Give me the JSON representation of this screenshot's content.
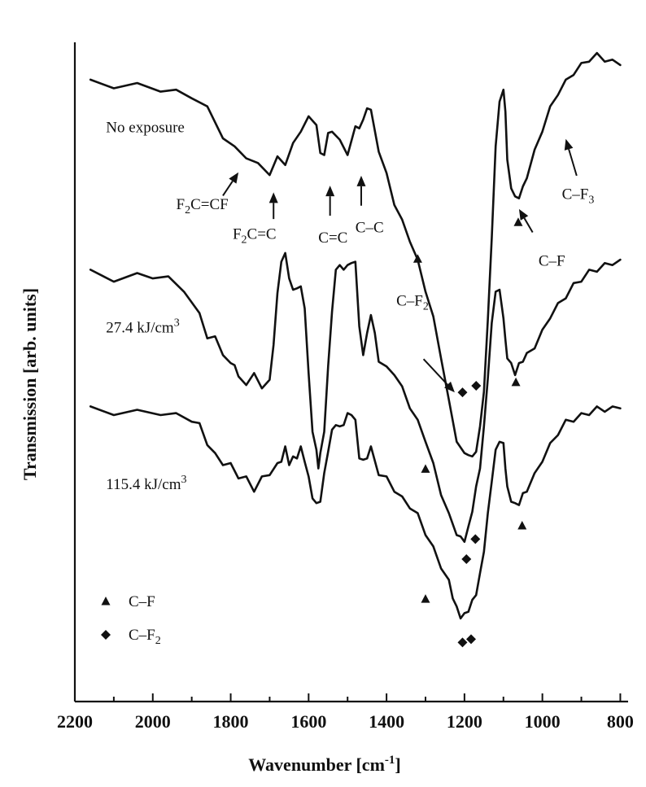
{
  "chart_data": {
    "type": "line",
    "xlabel": "Wavenumber [cm",
    "xlabel_sup": "-1",
    "xlabel_end": "]",
    "ylabel": "Transmission [arb. units]",
    "xlim": [
      2200,
      780
    ],
    "x_reversed": true,
    "y_ticks": false,
    "x_ticks": [
      2200,
      2000,
      1800,
      1600,
      1400,
      1200,
      1000,
      800
    ],
    "grid": false,
    "series": [
      {
        "name": "No exposure",
        "x": [
          2160,
          2100,
          2040,
          1980,
          1940,
          1900,
          1860,
          1820,
          1790,
          1760,
          1730,
          1700,
          1680,
          1660,
          1640,
          1620,
          1600,
          1580,
          1570,
          1560,
          1550,
          1540,
          1520,
          1500,
          1480,
          1470,
          1460,
          1450,
          1440,
          1420,
          1400,
          1380,
          1360,
          1340,
          1320,
          1300,
          1280,
          1260,
          1240,
          1220,
          1200,
          1190,
          1180,
          1170,
          1160,
          1150,
          1140,
          1130,
          1120,
          1110,
          1100,
          1095,
          1090,
          1080,
          1070,
          1060,
          1050,
          1040,
          1020,
          1000,
          980,
          960,
          940,
          920,
          900,
          880,
          860,
          840,
          820,
          800
        ],
        "y": [
          8.7,
          8.65,
          8.65,
          8.6,
          8.55,
          8.5,
          8.3,
          7.9,
          7.7,
          7.6,
          7.45,
          7.35,
          7.55,
          7.5,
          7.75,
          8.0,
          8.15,
          8.1,
          7.6,
          7.65,
          7.9,
          8.0,
          7.8,
          7.65,
          8.0,
          8.05,
          8.1,
          8.35,
          8.25,
          7.7,
          7.3,
          6.9,
          6.6,
          6.35,
          6.0,
          5.6,
          5.15,
          4.6,
          3.9,
          3.35,
          3.1,
          3.15,
          3.05,
          3.2,
          3.5,
          4.1,
          5.1,
          6.4,
          7.7,
          8.45,
          8.55,
          8.3,
          7.5,
          7.15,
          6.95,
          7.0,
          7.1,
          7.3,
          7.65,
          8.0,
          8.3,
          8.55,
          8.7,
          8.85,
          8.95,
          9.05,
          9.1,
          9.05,
          9.0,
          9.0
        ]
      },
      {
        "name": "27.4 kJ/cm³",
        "x": [
          2160,
          2100,
          2040,
          2000,
          1960,
          1920,
          1880,
          1860,
          1840,
          1820,
          1800,
          1790,
          1780,
          1760,
          1740,
          1720,
          1700,
          1690,
          1680,
          1670,
          1660,
          1650,
          1640,
          1630,
          1620,
          1610,
          1600,
          1590,
          1580,
          1575,
          1570,
          1560,
          1550,
          1540,
          1530,
          1520,
          1510,
          1500,
          1490,
          1480,
          1470,
          1460,
          1450,
          1440,
          1430,
          1420,
          1400,
          1380,
          1360,
          1340,
          1320,
          1300,
          1280,
          1260,
          1240,
          1220,
          1210,
          1200,
          1190,
          1180,
          1170,
          1160,
          1150,
          1140,
          1130,
          1120,
          1110,
          1100,
          1095,
          1090,
          1080,
          1070,
          1060,
          1050,
          1040,
          1020,
          1000,
          980,
          960,
          940,
          920,
          900,
          880,
          860,
          840,
          820,
          800
        ],
        "y": [
          5.85,
          5.75,
          5.8,
          5.8,
          5.75,
          5.6,
          5.2,
          4.9,
          4.85,
          4.65,
          4.45,
          4.5,
          4.25,
          4.2,
          4.3,
          4.15,
          4.2,
          4.8,
          5.5,
          6.05,
          6.1,
          5.8,
          5.55,
          5.65,
          5.6,
          5.35,
          4.3,
          3.5,
          3.15,
          2.95,
          3.1,
          3.5,
          4.4,
          5.3,
          5.85,
          6.0,
          5.85,
          6.0,
          5.95,
          6.05,
          5.0,
          4.65,
          4.9,
          5.25,
          4.9,
          4.55,
          4.4,
          4.35,
          4.1,
          3.85,
          3.6,
          3.35,
          2.95,
          2.55,
          2.2,
          1.95,
          1.85,
          1.85,
          2.0,
          2.3,
          2.6,
          2.95,
          3.5,
          4.3,
          5.05,
          5.6,
          5.55,
          5.2,
          4.8,
          4.6,
          4.45,
          4.35,
          4.45,
          4.55,
          4.6,
          4.75,
          4.95,
          5.2,
          5.35,
          5.5,
          5.65,
          5.75,
          5.85,
          5.9,
          5.95,
          6.0,
          6.0
        ]
      },
      {
        "name": "115.4 kJ/cm³",
        "x": [
          2160,
          2100,
          2040,
          1980,
          1940,
          1900,
          1880,
          1860,
          1840,
          1820,
          1800,
          1780,
          1760,
          1740,
          1720,
          1700,
          1680,
          1670,
          1660,
          1650,
          1640,
          1630,
          1620,
          1610,
          1600,
          1590,
          1580,
          1570,
          1560,
          1550,
          1540,
          1530,
          1520,
          1510,
          1500,
          1490,
          1480,
          1470,
          1460,
          1450,
          1440,
          1420,
          1400,
          1380,
          1360,
          1340,
          1320,
          1300,
          1280,
          1260,
          1240,
          1230,
          1220,
          1210,
          1200,
          1190,
          1180,
          1170,
          1160,
          1150,
          1140,
          1130,
          1120,
          1110,
          1100,
          1095,
          1090,
          1080,
          1070,
          1060,
          1050,
          1040,
          1020,
          1000,
          980,
          960,
          940,
          920,
          900,
          880,
          860,
          840,
          820,
          800
        ],
        "y": [
          3.8,
          3.75,
          3.75,
          3.75,
          3.7,
          3.65,
          3.55,
          3.3,
          3.1,
          3.0,
          2.95,
          2.8,
          2.75,
          2.6,
          2.75,
          2.85,
          2.95,
          3.05,
          3.2,
          3.0,
          3.05,
          3.1,
          3.2,
          3.05,
          2.75,
          2.5,
          2.35,
          2.45,
          2.8,
          3.2,
          3.45,
          3.6,
          3.5,
          3.6,
          3.7,
          3.75,
          3.6,
          3.1,
          3.0,
          3.1,
          3.2,
          2.85,
          2.75,
          2.6,
          2.45,
          2.35,
          2.2,
          1.95,
          1.7,
          1.45,
          1.2,
          1.0,
          0.8,
          0.7,
          0.7,
          0.8,
          0.9,
          1.05,
          1.3,
          1.7,
          2.2,
          2.75,
          3.15,
          3.35,
          3.25,
          2.95,
          2.6,
          2.45,
          2.35,
          2.4,
          2.5,
          2.6,
          2.8,
          3.05,
          3.25,
          3.45,
          3.6,
          3.65,
          3.7,
          3.75,
          3.8,
          3.8,
          3.8,
          3.85
        ]
      }
    ],
    "series_labels": [
      {
        "text": "No exposure",
        "x": 2120,
        "y": 7.95
      },
      {
        "text": "27.4 kJ/cm",
        "sup": "3",
        "x": 2120,
        "y": 4.95
      },
      {
        "text": "115.4 kJ/cm",
        "sup": "3",
        "x": 2120,
        "y": 2.6
      }
    ],
    "annotations": [
      {
        "text": "F",
        "sub": "2",
        "tail": "C=CF",
        "text_x": 1940,
        "text_y": 6.8,
        "arrow_from": [
          1820,
          7.0
        ],
        "arrow_to": [
          1780,
          7.35
        ]
      },
      {
        "text": "F",
        "sub": "2",
        "tail": "C=C",
        "text_x": 1795,
        "text_y": 6.35,
        "arrow_from": [
          1690,
          6.65
        ],
        "arrow_to": [
          1690,
          7.05
        ]
      },
      {
        "text": "C=C",
        "tail": "",
        "text_x": 1575,
        "text_y": 6.3,
        "arrow_from": [
          1545,
          6.7
        ],
        "arrow_to": [
          1545,
          7.15
        ]
      },
      {
        "text": "C–C",
        "tail": "",
        "text_x": 1480,
        "text_y": 6.45,
        "arrow_from": [
          1465,
          6.85
        ],
        "arrow_to": [
          1465,
          7.3
        ]
      },
      {
        "text": "C–F",
        "tail": "",
        "text_x": 1010,
        "text_y": 5.95,
        "arrow_from": [
          1025,
          6.45
        ],
        "arrow_to": [
          1060,
          6.8
        ]
      },
      {
        "text": "C–F",
        "sub": "3",
        "tail": "",
        "text_x": 950,
        "text_y": 6.95,
        "arrow_from": [
          912,
          7.3
        ],
        "arrow_to": [
          940,
          7.85
        ]
      },
      {
        "text": "C–F",
        "sub": "2",
        "tail": "",
        "text_x": 1375,
        "text_y": 5.35,
        "arrow_from": [
          1305,
          4.55
        ],
        "arrow_to": [
          1225,
          4.05
        ]
      }
    ],
    "markers": [
      {
        "shape": "triangle",
        "x": 1320,
        "y": 6.05
      },
      {
        "shape": "triangle",
        "x": 1062,
        "y": 6.6
      },
      {
        "shape": "diamond",
        "x": 1205,
        "y": 4.05
      },
      {
        "shape": "diamond",
        "x": 1170,
        "y": 4.15
      },
      {
        "shape": "triangle",
        "x": 1068,
        "y": 4.2
      },
      {
        "shape": "triangle",
        "x": 1300,
        "y": 2.9
      },
      {
        "shape": "diamond",
        "x": 1195,
        "y": 1.55
      },
      {
        "shape": "diamond",
        "x": 1172,
        "y": 1.85
      },
      {
        "shape": "triangle",
        "x": 1052,
        "y": 2.05
      },
      {
        "shape": "triangle",
        "x": 1300,
        "y": 0.95
      },
      {
        "shape": "diamond",
        "x": 1205,
        "y": 0.3
      },
      {
        "shape": "diamond",
        "x": 1183,
        "y": 0.35
      }
    ],
    "legend": {
      "placement": "bottom-left",
      "items": [
        {
          "shape": "triangle",
          "label": "C–F",
          "sub": ""
        },
        {
          "shape": "diamond",
          "label": "C–F",
          "sub": "2"
        }
      ]
    }
  }
}
